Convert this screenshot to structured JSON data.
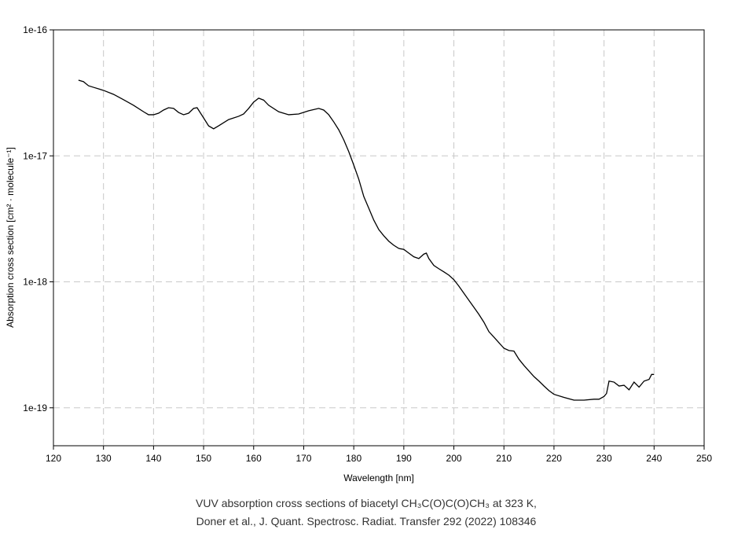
{
  "chart_data": {
    "type": "line",
    "x_label": "Wavelength [nm]",
    "y_label": "Absorption cross section [cm² · molecule⁻¹]",
    "caption": [
      "VUV absorption cross sections of biacetyl CH₃C(O)C(O)CH₃ at 323 K,",
      "Doner et al., J. Quant. Spectrosc. Radiat. Transfer 292 (2022) 108346"
    ],
    "log_y": true,
    "grid": true,
    "xlim": [
      120,
      250
    ],
    "xticks": [
      120,
      130,
      140,
      150,
      160,
      170,
      180,
      190,
      200,
      210,
      220,
      230,
      240,
      250
    ],
    "ylim": [
      5e-20,
      1e-16
    ],
    "yticks": [
      {
        "value": 1e-19,
        "label": "1e-19"
      },
      {
        "value": 1e-18,
        "label": "1e-18"
      },
      {
        "value": 1e-17,
        "label": "1e-17"
      },
      {
        "value": 1e-16,
        "label": "1e-16"
      }
    ],
    "series": [
      {
        "color": "#000000",
        "x": [
          125,
          126,
          127,
          128,
          130,
          132,
          134,
          136,
          138,
          139,
          140,
          141,
          142,
          143,
          144,
          145,
          146,
          147,
          148,
          148.7,
          150,
          151,
          152,
          153,
          155,
          157,
          158,
          159,
          160,
          161,
          162,
          163,
          165,
          167,
          169,
          171,
          173,
          174,
          175,
          176,
          177,
          178,
          179,
          180,
          181,
          182,
          183,
          184,
          185,
          186,
          187,
          188,
          189,
          190,
          191,
          192,
          193,
          194,
          194.5,
          195,
          196,
          197,
          198,
          199,
          200,
          201,
          202,
          203,
          204,
          205,
          206,
          207,
          208,
          209,
          210,
          211,
          212,
          213,
          214,
          215,
          216,
          217,
          218,
          219,
          220,
          222,
          224,
          226,
          228,
          229,
          230,
          230.5,
          231,
          232,
          233,
          234,
          235,
          236,
          237,
          238,
          239,
          239.5,
          240
        ],
        "values": [
          3.99e-17,
          3.88e-17,
          3.6e-17,
          3.5e-17,
          3.31e-17,
          3.08e-17,
          2.79e-17,
          2.52e-17,
          2.24e-17,
          2.12e-17,
          2.12e-17,
          2.18e-17,
          2.31e-17,
          2.41e-17,
          2.38e-17,
          2.21e-17,
          2.12e-17,
          2.18e-17,
          2.38e-17,
          2.41e-17,
          2e-17,
          1.73e-17,
          1.64e-17,
          1.73e-17,
          1.94e-17,
          2.06e-17,
          2.15e-17,
          2.38e-17,
          2.67e-17,
          2.87e-17,
          2.77e-17,
          2.52e-17,
          2.24e-17,
          2.12e-17,
          2.15e-17,
          2.28e-17,
          2.38e-17,
          2.31e-17,
          2.12e-17,
          1.86e-17,
          1.61e-17,
          1.34e-17,
          1.08e-17,
          8.45e-18,
          6.53e-18,
          4.76e-18,
          3.84e-18,
          3.09e-18,
          2.6e-18,
          2.32e-18,
          2.1e-18,
          1.95e-18,
          1.84e-18,
          1.81e-18,
          1.69e-18,
          1.58e-18,
          1.53e-18,
          1.66e-18,
          1.69e-18,
          1.53e-18,
          1.35e-18,
          1.27e-18,
          1.2e-18,
          1.13e-18,
          1.04e-18,
          9.24e-19,
          8.12e-19,
          7.14e-19,
          6.28e-19,
          5.52e-19,
          4.78e-19,
          4.02e-19,
          3.64e-19,
          3.29e-19,
          2.97e-19,
          2.85e-19,
          2.82e-19,
          2.43e-19,
          2.17e-19,
          1.96e-19,
          1.77e-19,
          1.63e-19,
          1.49e-19,
          1.37e-19,
          1.28e-19,
          1.21e-19,
          1.15e-19,
          1.15e-19,
          1.17e-19,
          1.17e-19,
          1.23e-19,
          1.3e-19,
          1.63e-19,
          1.6e-19,
          1.49e-19,
          1.51e-19,
          1.39e-19,
          1.6e-19,
          1.46e-19,
          1.63e-19,
          1.68e-19,
          1.84e-19,
          1.84e-19
        ]
      }
    ]
  }
}
